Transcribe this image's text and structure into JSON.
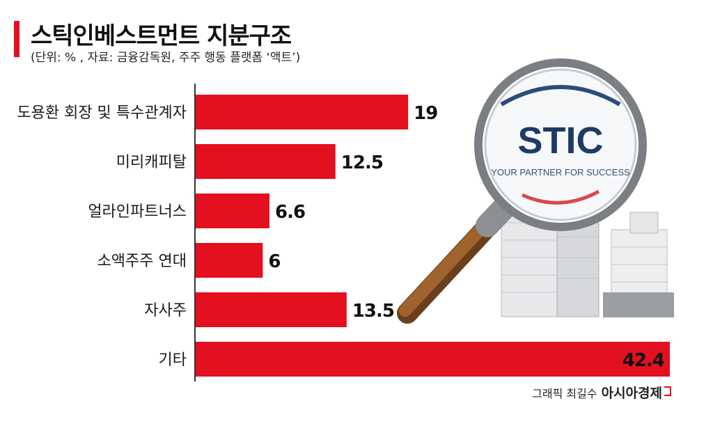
{
  "header": {
    "title": "스틱인베스트먼트 지분구조",
    "subtitle": "(단위: % , 자료: 금융감독원, 주주 행동 플랫폼 ‘액트’)"
  },
  "chart_data": {
    "type": "bar",
    "orientation": "horizontal",
    "categories": [
      "도용환 회장 및 특수관계자",
      "미리캐피탈",
      "얼라인파트너스",
      "소액주주 연대",
      "자사주",
      "기타"
    ],
    "values": [
      19,
      12.5,
      6.6,
      6,
      13.5,
      42.4
    ],
    "value_labels": [
      "19",
      "12.5",
      "6.6",
      "6",
      "13.5",
      "42.4"
    ],
    "xlim": [
      0,
      42.4
    ],
    "grid": false,
    "bar_color": "#e3101f"
  },
  "illustration": {
    "logo_text": "STIC",
    "tagline": "YOUR PARTNER FOR SUCCESS"
  },
  "footer": {
    "credit": "그래픽 최길수",
    "brand": "아시아경제"
  },
  "colors": {
    "accent": "#e3101f",
    "text": "#111111"
  }
}
